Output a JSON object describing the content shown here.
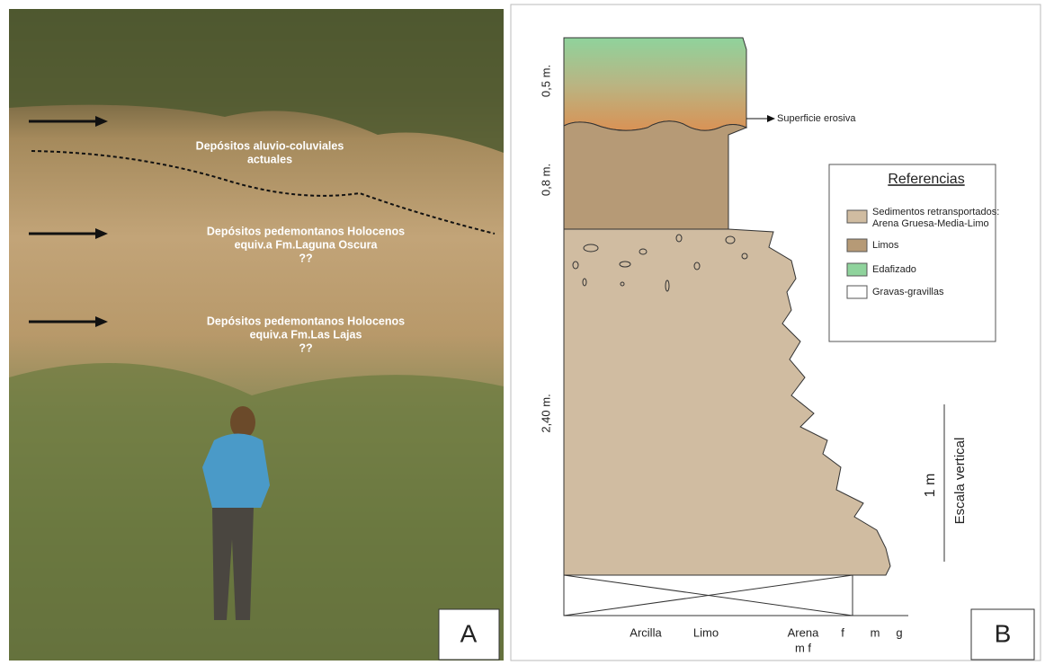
{
  "panel_a": {
    "label": "A",
    "annotations": [
      {
        "lines": [
          "Depósitos aluvio-coluviales",
          "actuales"
        ]
      },
      {
        "lines": [
          "Depósitos pedemontanos Holocenos",
          "equiv.a Fm.Laguna Oscura",
          "??"
        ]
      },
      {
        "lines": [
          "Depósitos pedemontanos Holocenos",
          "equiv.a Fm.Las Lajas",
          "??"
        ]
      }
    ]
  },
  "panel_b": {
    "label": "B",
    "thickness_labels": [
      "0,5 m.",
      "0,8 m.",
      "2,40 m."
    ],
    "annotation": "Superficie erosiva",
    "legend": {
      "title": "Referencias",
      "items": [
        {
          "lines": [
            "Sedimentos retransportados:",
            "Arena Gruesa-Media-Limo"
          ]
        },
        {
          "lines": [
            "Limos"
          ]
        },
        {
          "lines": [
            "Edafizado"
          ]
        },
        {
          "lines": [
            "Gravas-gravillas"
          ]
        }
      ]
    },
    "scale": {
      "label": "1 m",
      "title": "Escala vertical"
    },
    "x_labels": [
      "Arcilla",
      "Limo",
      "Arena",
      "m f",
      "f",
      "m",
      "g"
    ]
  }
}
